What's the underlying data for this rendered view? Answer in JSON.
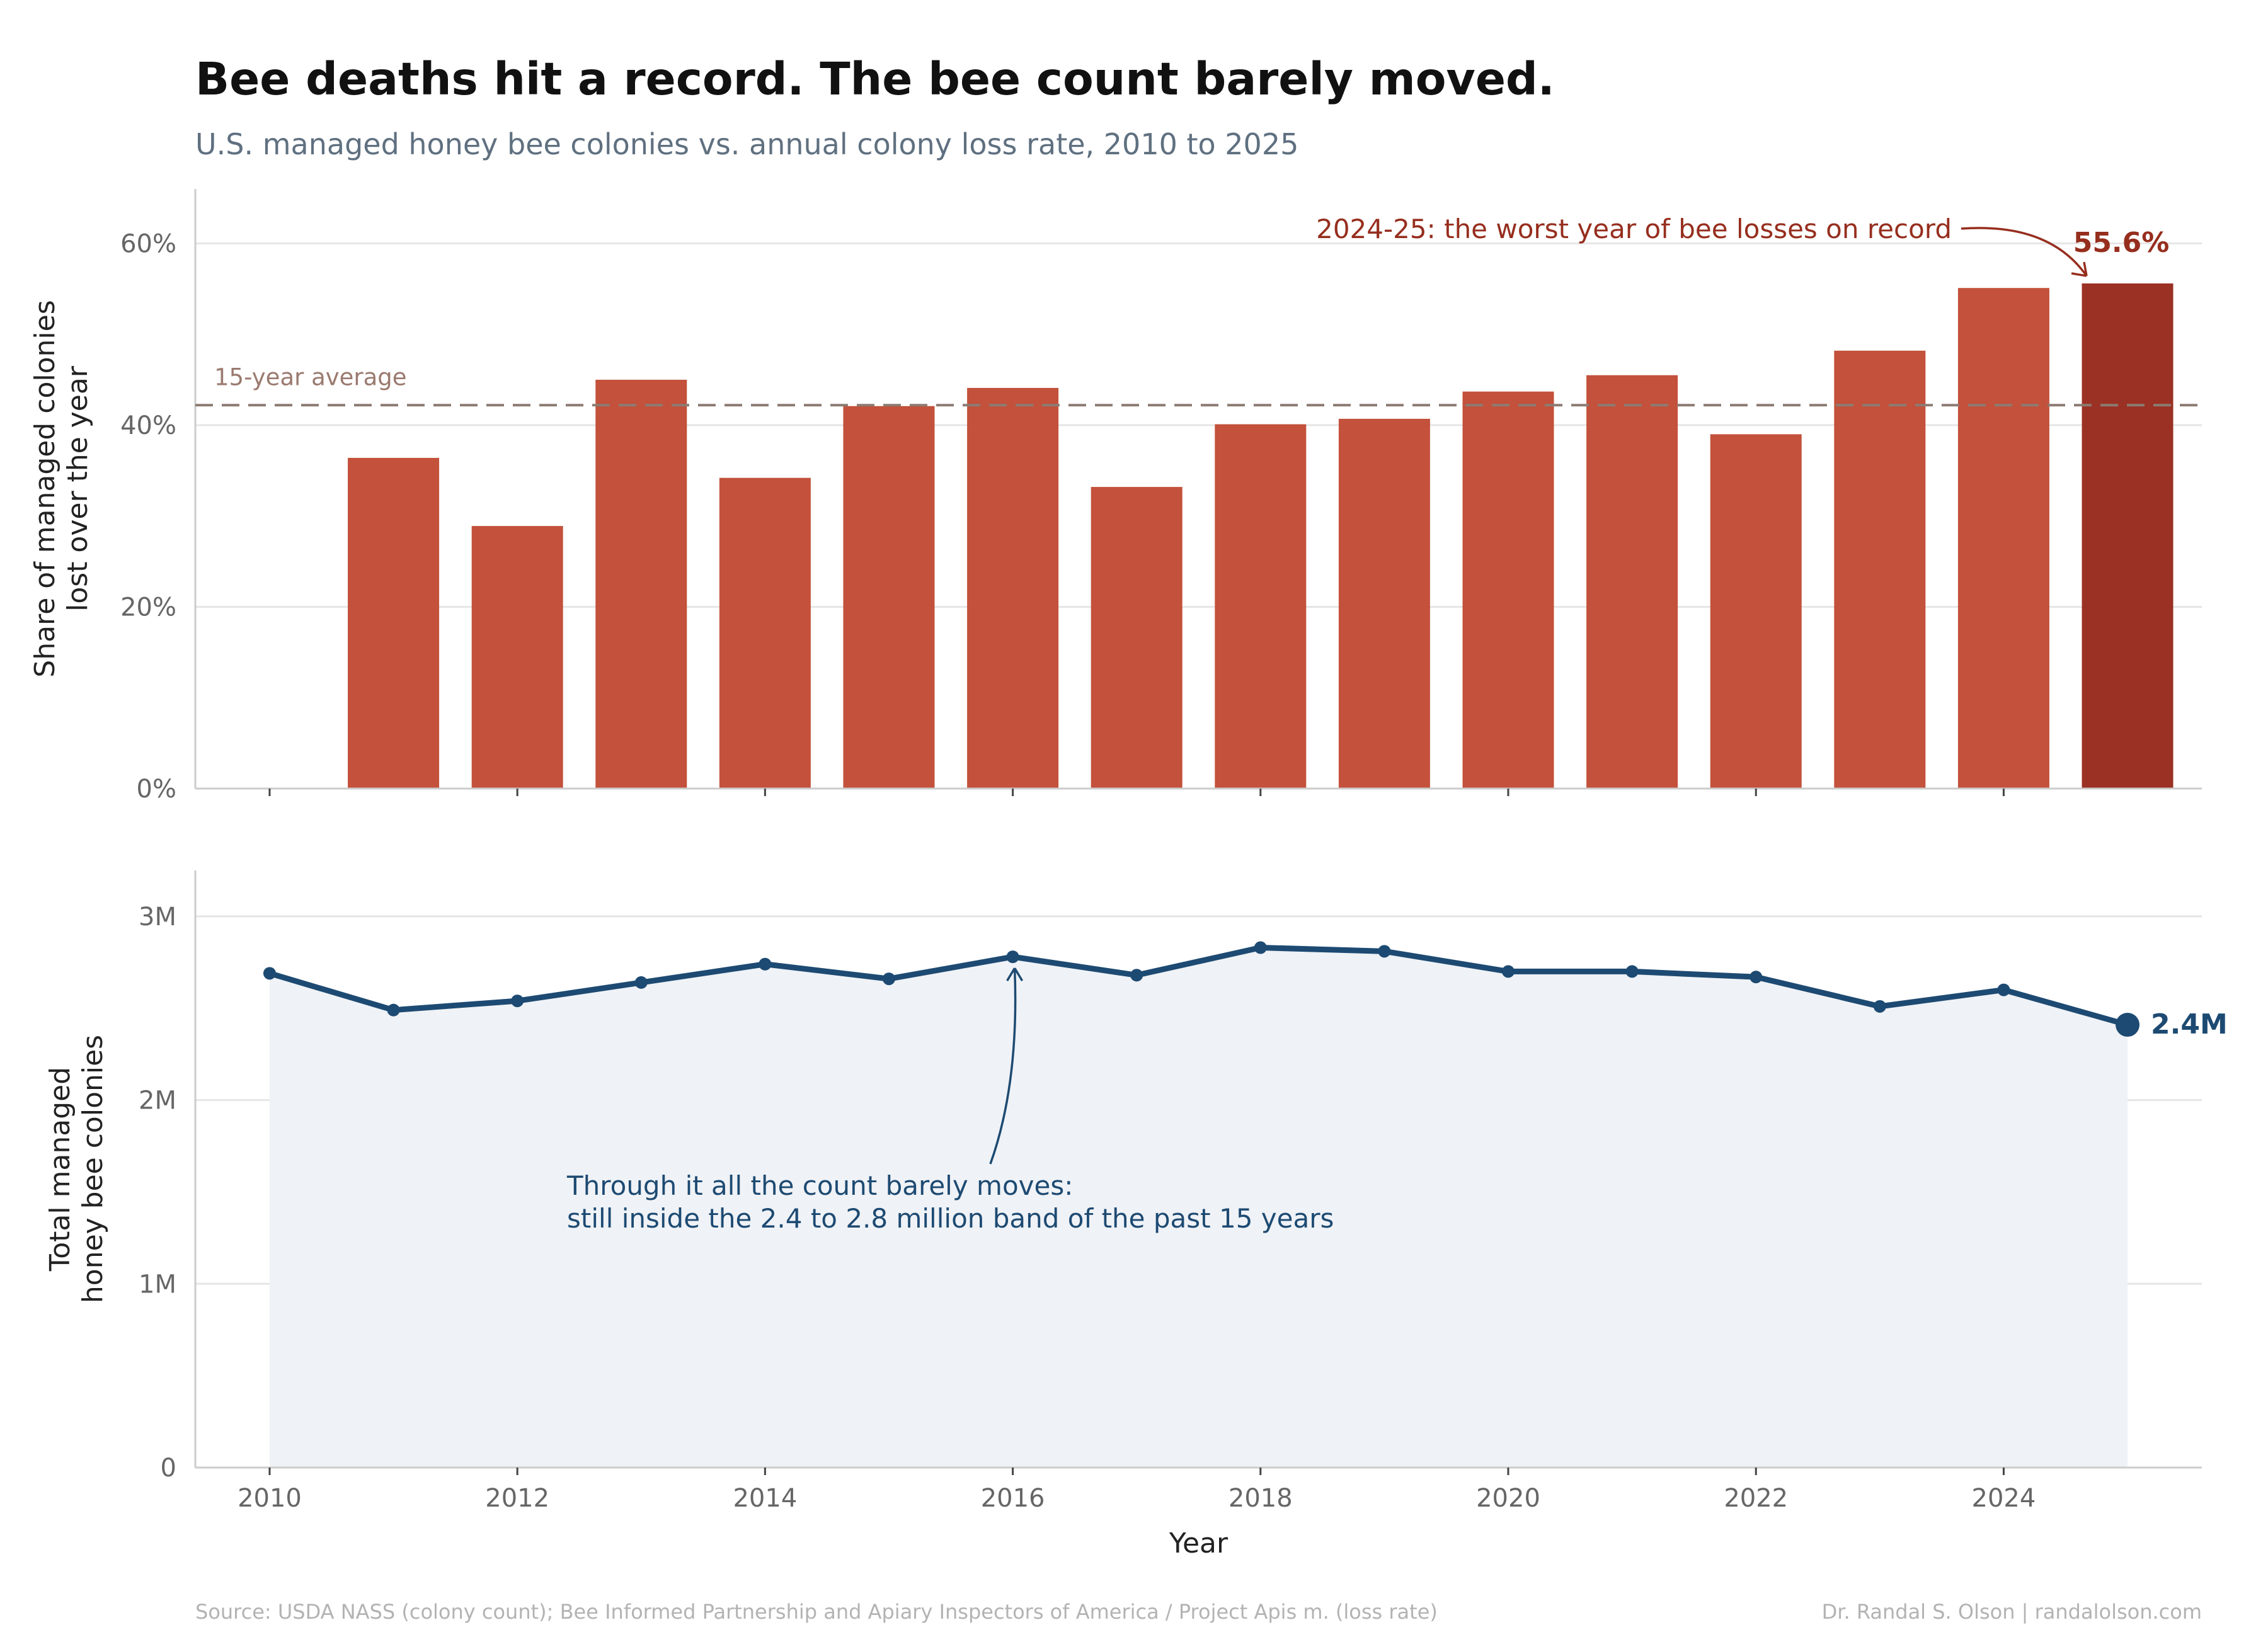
{
  "title": "Bee deaths hit a record. The bee count barely moved.",
  "subtitle": "U.S. managed honey bee colonies vs. annual colony loss rate, 2010 to 2025",
  "colors": {
    "bar": "#c3513b",
    "bar_highlight": "#9a3124",
    "avg_line": "#8c7b72",
    "line": "#1d4a72",
    "area": "#eff2f6",
    "grid": "#e6e6e6",
    "axis": "#cccccc"
  },
  "chart_data": [
    {
      "type": "bar",
      "x": [
        2011,
        2012,
        2013,
        2014,
        2015,
        2016,
        2017,
        2018,
        2019,
        2020,
        2021,
        2022,
        2023,
        2024,
        2025
      ],
      "values": [
        36.4,
        28.9,
        45.0,
        34.2,
        42.1,
        44.1,
        33.2,
        40.1,
        40.7,
        43.7,
        45.5,
        39.0,
        48.2,
        55.1,
        55.6
      ],
      "ylabel": "Share of managed colonies\nlost over the year",
      "ylim": [
        0,
        66
      ],
      "yticks": [
        0,
        20,
        40,
        60
      ],
      "ytick_labels": [
        "0%",
        "20%",
        "40%",
        "60%"
      ],
      "xlim": [
        2009.4,
        2025.6
      ],
      "average": 42.2,
      "average_label": "15-year average",
      "highlight_index": 14,
      "highlight_label": "55.6%",
      "annotation": "2024-25: the worst year of bee losses on record",
      "grid": true
    },
    {
      "type": "area",
      "x": [
        2010,
        2011,
        2012,
        2013,
        2014,
        2015,
        2016,
        2017,
        2018,
        2019,
        2020,
        2021,
        2022,
        2023,
        2024,
        2025
      ],
      "values": [
        2.69,
        2.49,
        2.54,
        2.64,
        2.74,
        2.66,
        2.78,
        2.68,
        2.83,
        2.81,
        2.7,
        2.7,
        2.67,
        2.51,
        2.6,
        2.41
      ],
      "ylabel": "Total managed\nhoney bee colonies",
      "xlabel": "Year",
      "ylim": [
        0,
        3.25
      ],
      "yticks": [
        0,
        1,
        2,
        3
      ],
      "ytick_labels": [
        "0",
        "1M",
        "2M",
        "3M"
      ],
      "xticks": [
        2010,
        2012,
        2014,
        2016,
        2018,
        2020,
        2022,
        2024
      ],
      "xlim": [
        2009.4,
        2025.6
      ],
      "end_label": "2.4M",
      "annotation": "Through it all the count barely moves:\nstill inside the 2.4 to 2.8 million band of the past 15 years",
      "grid": true
    }
  ],
  "footer": {
    "source": "Source: USDA NASS (colony count); Bee Informed Partnership and Apiary Inspectors of America / Project Apis m. (loss rate)",
    "credit": "Dr. Randal S. Olson  |  randalolson.com"
  }
}
